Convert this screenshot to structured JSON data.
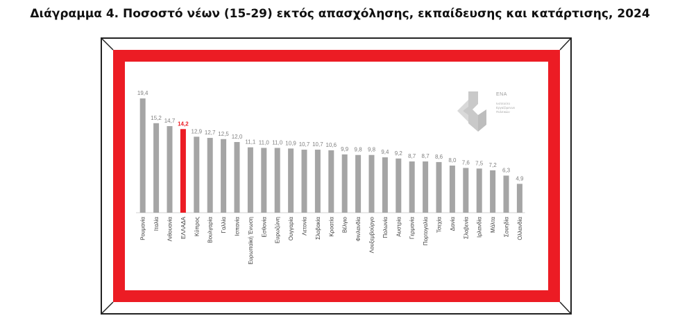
{
  "title": "Διάγραμμα 4. Ποσοστό νέων (15-29) εκτός απασχόλησης, εκπαίδευσης και κατάρτισης, 2024",
  "logo": {
    "abbr": "ΕΝΑ",
    "lines": [
      "Ινστιτούτο",
      "Εργαζόμενων",
      "Πολιτικών"
    ]
  },
  "colors": {
    "bar": "#a5a5a5",
    "highlight": "#ec1c24",
    "frame_red": "#ec1c24",
    "label": "#7f7f7f"
  },
  "chart_data": {
    "type": "bar",
    "title": "",
    "xlabel": "",
    "ylabel": "",
    "ylim": [
      0,
      20
    ],
    "grid": false,
    "highlight_category": "ΕΛΛΑΔΑ",
    "categories": [
      "Ρουμανία",
      "Ιταλία",
      "Λιθουανία",
      "ΕΛΛΑΔΑ",
      "Κύπρος",
      "Βουλγαρία",
      "Γαλλία",
      "Ισπανία",
      "Ευρωπαϊκή Ένωση",
      "Εσθονία",
      "Ευρωζώνη",
      "Ουγγαρία",
      "Λετονία",
      "Σλοβακία",
      "Κροατία",
      "Βέλγιο",
      "Φινλανδία",
      "Λουξεμβούργο",
      "Πολωνία",
      "Αυστρία",
      "Γερμανία",
      "Πορτογαλία",
      "Τσεχία",
      "Δανία",
      "Σλοβενία",
      "Ιρλανδία",
      "Μάλτα",
      "Σουηδία",
      "Ολλανδία"
    ],
    "values": [
      19.4,
      15.2,
      14.7,
      14.2,
      12.9,
      12.7,
      12.5,
      12.0,
      11.1,
      11.0,
      11.0,
      10.9,
      10.7,
      10.7,
      10.6,
      9.9,
      9.8,
      9.8,
      9.4,
      9.2,
      8.7,
      8.7,
      8.6,
      8.0,
      7.6,
      7.5,
      7.2,
      6.3,
      4.9
    ],
    "value_labels": [
      "19,4",
      "15,2",
      "14,7",
      "14,2",
      "12,9",
      "12,7",
      "12,5",
      "12,0",
      "11,1",
      "11,0",
      "11,0",
      "10,9",
      "10,7",
      "10,7",
      "10,6",
      "9,9",
      "9,8",
      "9,8",
      "9,4",
      "9,2",
      "8,7",
      "8,7",
      "8,6",
      "8,0",
      "7,6",
      "7,5",
      "7,2",
      "6,3",
      "4,9"
    ]
  }
}
